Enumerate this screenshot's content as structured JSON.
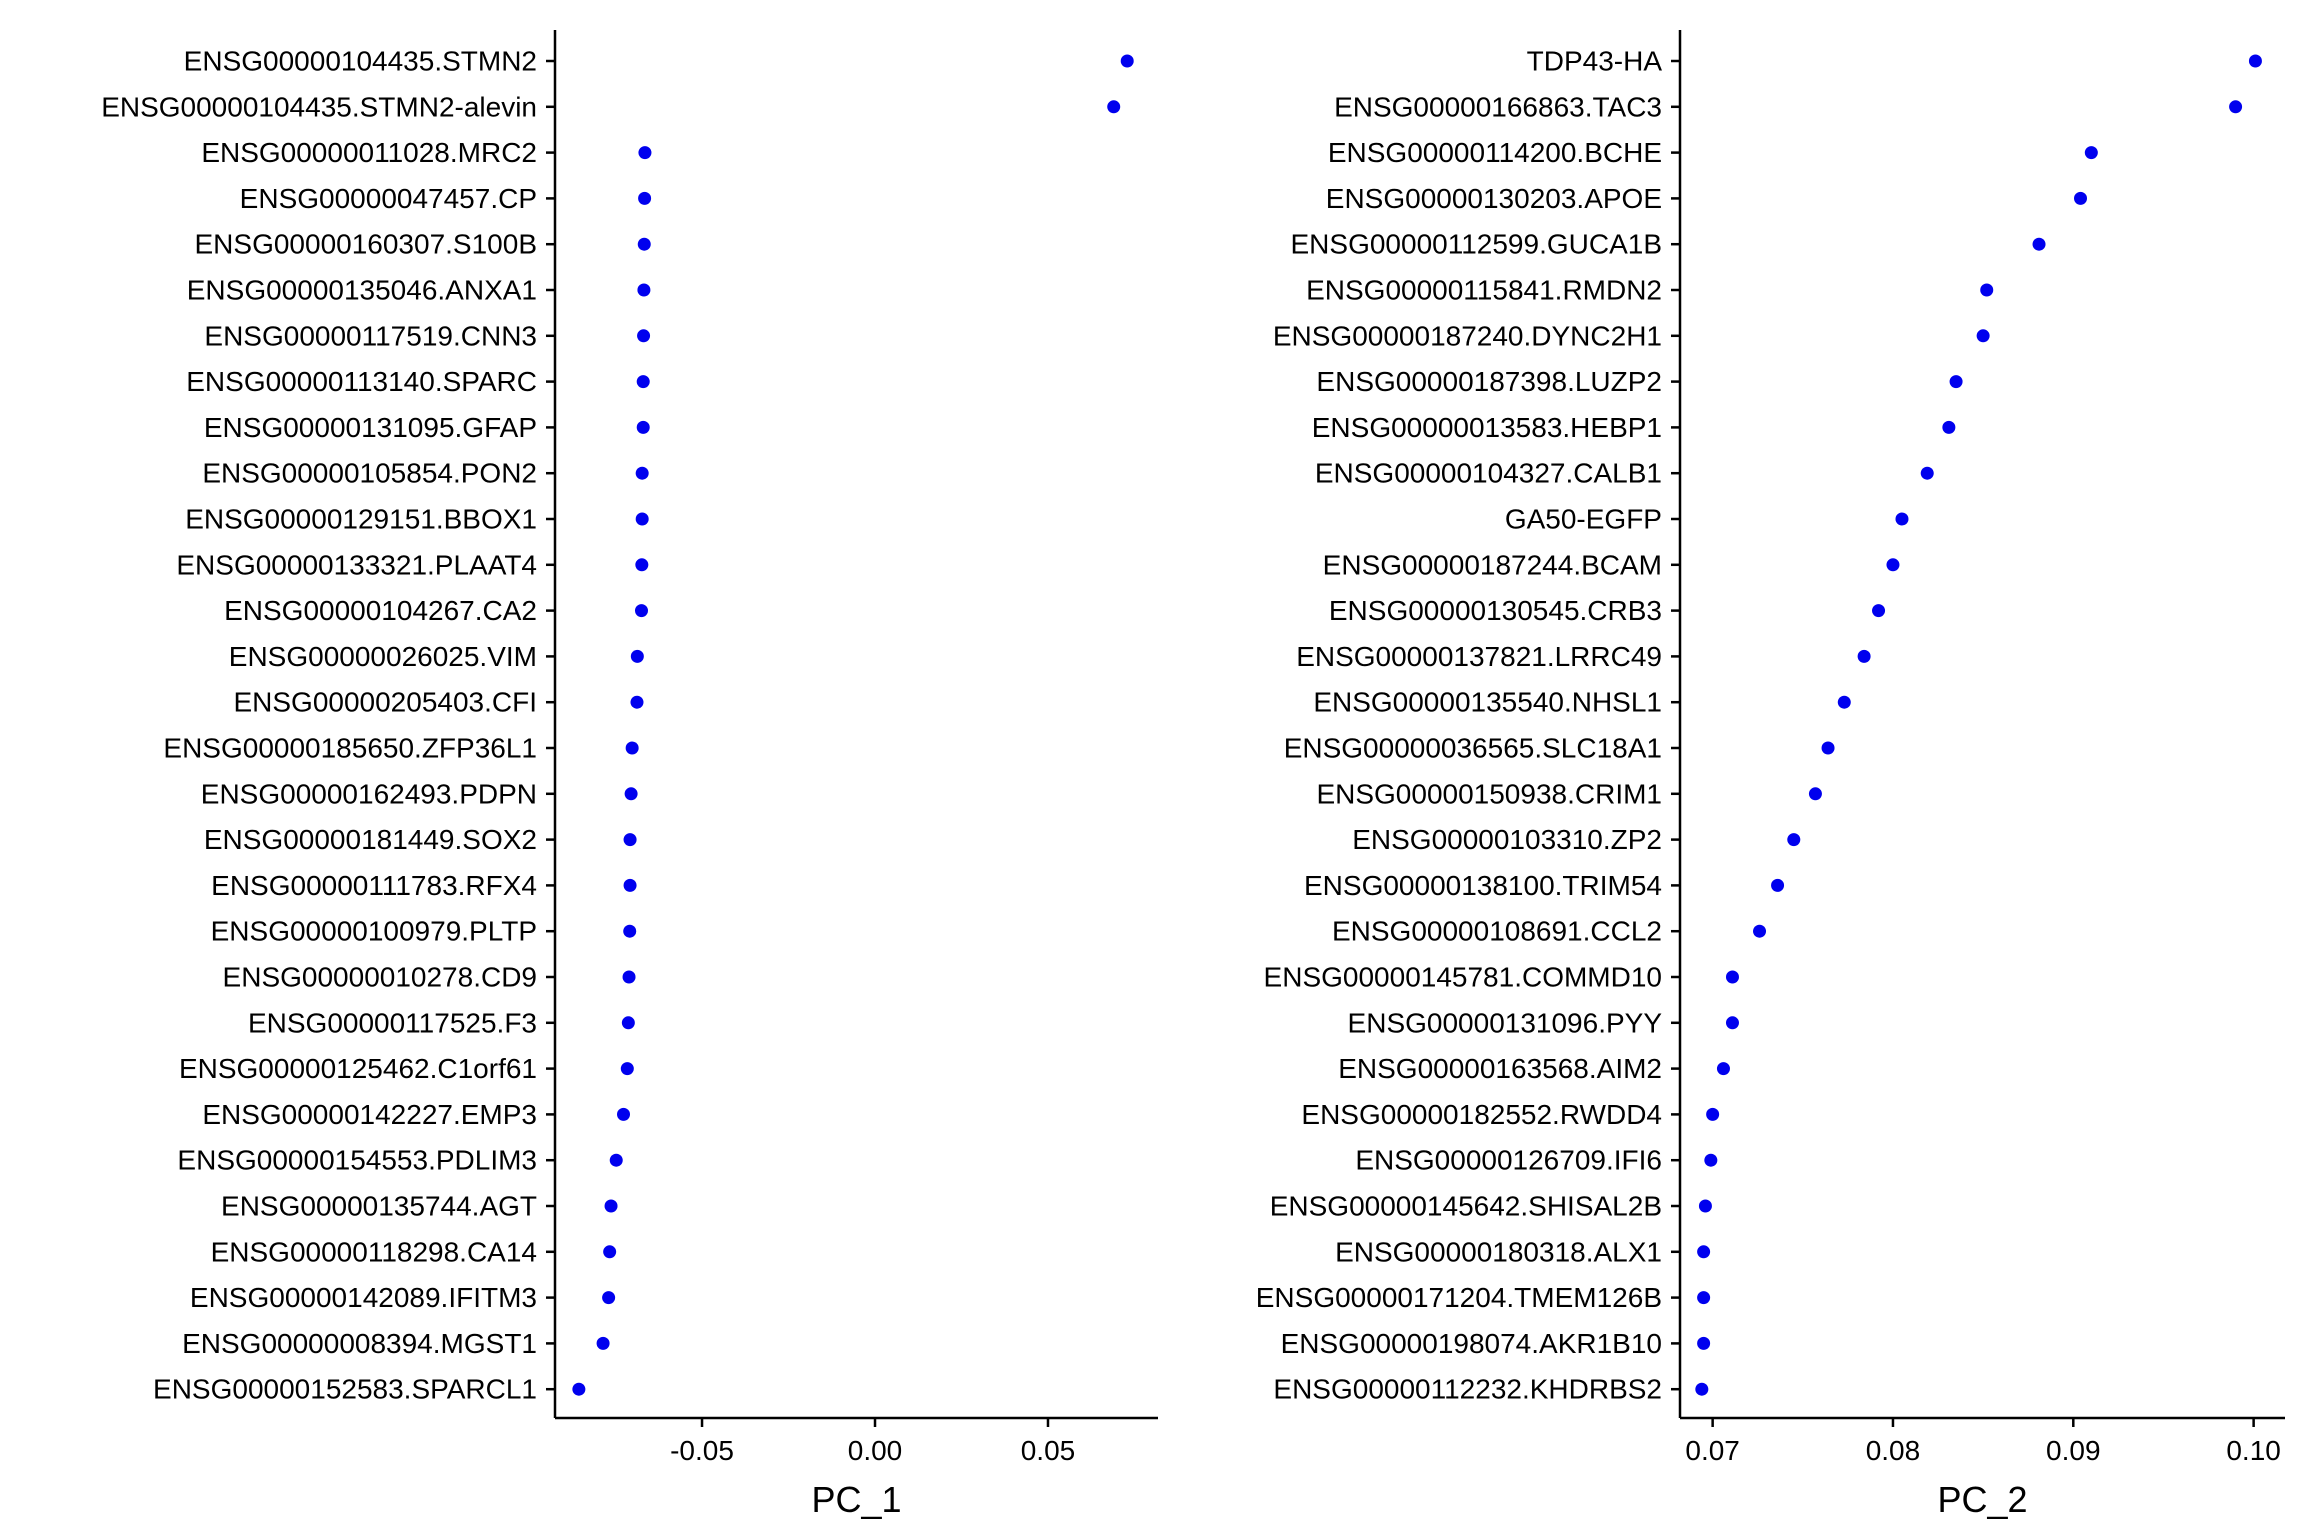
{
  "chart_data": [
    {
      "type": "scatter",
      "xlabel": "PC_1",
      "ylabel": "",
      "xlim": [
        -0.0925,
        0.0818
      ],
      "xticks": [
        -0.05,
        0.0,
        0.05
      ],
      "xtick_labels": [
        "-0.05",
        "0.00",
        "0.05"
      ],
      "grid": false,
      "point_color": "#0000ee",
      "categories": [
        "ENSG00000104435.STMN2",
        "ENSG00000104435.STMN2-alevin",
        "ENSG00000011028.MRC2",
        "ENSG00000047457.CP",
        "ENSG00000160307.S100B",
        "ENSG00000135046.ANXA1",
        "ENSG00000117519.CNN3",
        "ENSG00000113140.SPARC",
        "ENSG00000131095.GFAP",
        "ENSG00000105854.PON2",
        "ENSG00000129151.BBOX1",
        "ENSG00000133321.PLAAT4",
        "ENSG00000104267.CA2",
        "ENSG00000026025.VIM",
        "ENSG00000205403.CFI",
        "ENSG00000185650.ZFP36L1",
        "ENSG00000162493.PDPN",
        "ENSG00000181449.SOX2",
        "ENSG00000111783.RFX4",
        "ENSG00000100979.PLTP",
        "ENSG00000010278.CD9",
        "ENSG00000117525.F3",
        "ENSG00000125462.C1orf61",
        "ENSG00000142227.EMP3",
        "ENSG00000154553.PDLIM3",
        "ENSG00000135744.AGT",
        "ENSG00000118298.CA14",
        "ENSG00000142089.IFITM3",
        "ENSG00000008394.MGST1",
        "ENSG00000152583.SPARCL1"
      ],
      "values": [
        0.0729,
        0.069,
        -0.0665,
        -0.0666,
        -0.0667,
        -0.0668,
        -0.0669,
        -0.067,
        -0.067,
        -0.0673,
        -0.0673,
        -0.0674,
        -0.0675,
        -0.0687,
        -0.0688,
        -0.0702,
        -0.0705,
        -0.0708,
        -0.0708,
        -0.0709,
        -0.0711,
        -0.0713,
        -0.0716,
        -0.0727,
        -0.0748,
        -0.0763,
        -0.0767,
        -0.077,
        -0.0786,
        -0.0856
      ]
    },
    {
      "type": "scatter",
      "xlabel": "PC_2",
      "ylabel": "",
      "xlim": [
        0.06819,
        0.10174
      ],
      "xticks": [
        0.07,
        0.08,
        0.09,
        0.1
      ],
      "xtick_labels": [
        "0.07",
        "0.08",
        "0.09",
        "0.10"
      ],
      "grid": false,
      "point_color": "#0000ee",
      "categories": [
        "TDP43-HA",
        "ENSG00000166863.TAC3",
        "ENSG00000114200.BCHE",
        "ENSG00000130203.APOE",
        "ENSG00000112599.GUCA1B",
        "ENSG00000115841.RMDN2",
        "ENSG00000187240.DYNC2H1",
        "ENSG00000187398.LUZP2",
        "ENSG00000013583.HEBP1",
        "ENSG00000104327.CALB1",
        "GA50-EGFP",
        "ENSG00000187244.BCAM",
        "ENSG00000130545.CRB3",
        "ENSG00000137821.LRRC49",
        "ENSG00000135540.NHSL1",
        "ENSG00000036565.SLC18A1",
        "ENSG00000150938.CRIM1",
        "ENSG00000103310.ZP2",
        "ENSG00000138100.TRIM54",
        "ENSG00000108691.CCL2",
        "ENSG00000145781.COMMD10",
        "ENSG00000131096.PYY",
        "ENSG00000163568.AIM2",
        "ENSG00000182552.RWDD4",
        "ENSG00000126709.IFI6",
        "ENSG00000145642.SHISAL2B",
        "ENSG00000180318.ALX1",
        "ENSG00000171204.TMEM126B",
        "ENSG00000198074.AKR1B10",
        "ENSG00000112232.KHDRBS2"
      ],
      "values": [
        0.1001,
        0.099,
        0.091,
        0.0904,
        0.0881,
        0.0852,
        0.085,
        0.0835,
        0.0831,
        0.0819,
        0.0805,
        0.08,
        0.0792,
        0.0784,
        0.0773,
        0.0764,
        0.0757,
        0.0745,
        0.0736,
        0.0726,
        0.0711,
        0.0711,
        0.0706,
        0.07,
        0.0699,
        0.0696,
        0.0695,
        0.0695,
        0.0695,
        0.0694
      ]
    }
  ]
}
